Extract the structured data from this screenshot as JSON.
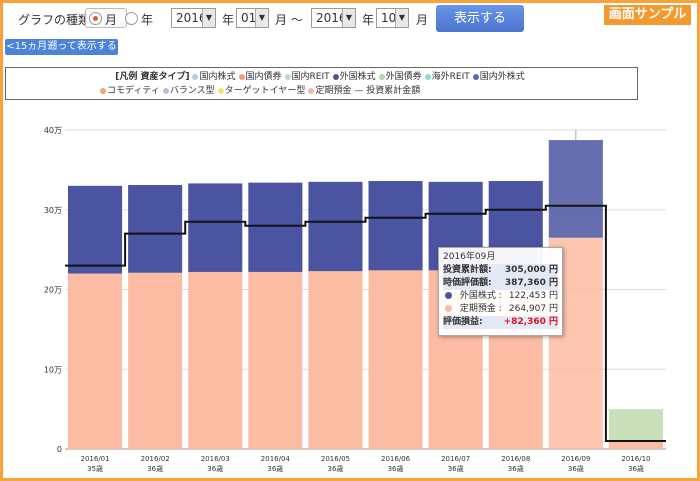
{
  "controls": {
    "graph_type_label": "グラフの種類:",
    "radio_month": "月",
    "radio_year": "年",
    "start_year": "2016",
    "year_unit": "年",
    "start_month": "01",
    "month_unit": "月",
    "tilde": "～",
    "end_year": "2016",
    "end_month": "10",
    "show_button": "表示する",
    "back_button": "<15ヵ月遡って表示する",
    "sample_badge": "画面サンプル",
    "arrow": "▼"
  },
  "legend": {
    "header": "[凡例 資産タイプ]",
    "items": [
      {
        "label": "国内株式",
        "color": "#a9cdea"
      },
      {
        "label": "国内債券",
        "color": "#f29b7e"
      },
      {
        "label": "国内REIT",
        "color": "#b8dccb"
      },
      {
        "label": "外国株式",
        "color": "#4b54a0"
      },
      {
        "label": "外国債券",
        "color": "#b5d6a7"
      },
      {
        "label": "海外REIT",
        "color": "#94d7d2"
      },
      {
        "label": "国内外株式",
        "color": "#4c6dbd"
      },
      {
        "label": "コモディティ",
        "color": "#f2a86e"
      },
      {
        "label": "バランス型",
        "color": "#c9b4e0"
      },
      {
        "label": "ターゲットイヤー型",
        "color": "#f5e184"
      },
      {
        "label": "定期預金",
        "color": "#f7b79c"
      }
    ],
    "line_item": "— 投資累計金額"
  },
  "tooltip": {
    "date": "2016年09月",
    "cum_label": "投資累計額:",
    "cum_value": "305,000 円",
    "eval_label": "時価評価額:",
    "eval_value": "387,360 円",
    "s1_label": "外国株式 :",
    "s1_value": "122,453 円",
    "s1_color": "#4b54a0",
    "s2_label": "定期預金 :",
    "s2_value": "264,907 円",
    "s2_color": "#fcbca3",
    "pl_label": "評価損益:",
    "pl_value": "+82,360 円"
  },
  "chart_data": {
    "type": "bar",
    "stacked": true,
    "categories": [
      "2016/01",
      "2016/02",
      "2016/03",
      "2016/04",
      "2016/05",
      "2016/06",
      "2016/07",
      "2016/08",
      "2016/09",
      "2016/10"
    ],
    "sublabels": [
      "35歳",
      "36歳",
      "36歳",
      "36歳",
      "36歳",
      "36歳",
      "36歳",
      "36歳",
      "36歳",
      "36歳"
    ],
    "yticks": [
      "0",
      "10万",
      "20万",
      "30万",
      "40万"
    ],
    "ylim": [
      0,
      400000
    ],
    "series": [
      {
        "name": "定期預金",
        "color": "#fcbca3",
        "values": [
          220000,
          221000,
          222000,
          222000,
          223000,
          224000,
          224000,
          225000,
          264907,
          10000
        ]
      },
      {
        "name": "外国債券",
        "color": "#c9e0bb",
        "values": [
          0,
          0,
          0,
          0,
          0,
          0,
          0,
          0,
          0,
          40000
        ]
      },
      {
        "name": "外国株式",
        "color": "#4b54a0",
        "values": [
          110000,
          110000,
          111000,
          112000,
          112000,
          112000,
          111000,
          111000,
          122453,
          0
        ]
      }
    ],
    "line": {
      "name": "投資累計金額",
      "values": [
        230000,
        270000,
        285000,
        280000,
        285000,
        290000,
        295000,
        300000,
        305000,
        10000
      ]
    },
    "highlight_index": 8
  }
}
